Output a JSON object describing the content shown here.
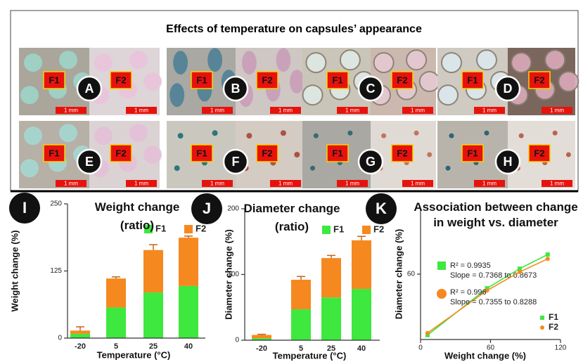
{
  "header": {
    "title": "Effects of temperature on capsules’ appearance"
  },
  "photo_panels": [
    {
      "letter": "A",
      "labels": [
        "F1",
        "F2"
      ],
      "scale_bars": [
        "1 mm",
        "1 mm"
      ]
    },
    {
      "letter": "B",
      "labels": [
        "F1",
        "F2"
      ],
      "scale_bars": [
        "1 mm",
        "1 mm"
      ]
    },
    {
      "letter": "C",
      "labels": [
        "F1",
        "F2"
      ],
      "scale_bars": [
        "1 mm",
        "1 mm"
      ]
    },
    {
      "letter": "D",
      "labels": [
        "F1",
        "F2"
      ],
      "scale_bars": [
        "1 mm",
        "1 mm"
      ]
    },
    {
      "letter": "E",
      "labels": [
        "F1",
        "F2"
      ],
      "scale_bars": [
        "1 mm",
        "1 mm"
      ]
    },
    {
      "letter": "F",
      "labels": [
        "F1",
        "F2"
      ],
      "scale_bars": [
        "1 mm",
        "1 mm"
      ]
    },
    {
      "letter": "G",
      "labels": [
        "F1",
        "F2"
      ],
      "scale_bars": [
        "1 mm",
        "1 mm"
      ]
    },
    {
      "letter": "H",
      "labels": [
        "F1",
        "F2"
      ],
      "scale_bars": [
        "1 mm",
        "1 mm"
      ]
    }
  ],
  "chart_data": [
    {
      "type": "bar",
      "stacked": true,
      "panel": "I",
      "title": "Weight change (ratio)",
      "x_label": "Temperature (°C)",
      "y_label": "Weight change (%)",
      "categories": [
        "-20",
        "5",
        "25",
        "40"
      ],
      "series": [
        {
          "name": "F1",
          "color": "#3ee83e",
          "values": [
            8,
            57,
            85,
            97
          ]
        },
        {
          "name": "F2",
          "color": "#f5891f",
          "values": [
            6,
            54,
            79,
            90
          ],
          "errors": [
            7,
            3,
            10,
            3
          ]
        }
      ],
      "ylim": [
        0,
        250
      ],
      "yticks": [
        0,
        125,
        250
      ]
    },
    {
      "type": "bar",
      "stacked": true,
      "panel": "J",
      "title": "Diameter change (ratio)",
      "x_label": "Temperature (°C)",
      "y_label": "Diameter change (%)",
      "categories": [
        "-20",
        "5",
        "25",
        "40"
      ],
      "series": [
        {
          "name": "F1",
          "color": "#3ee83e",
          "values": [
            3,
            47,
            65,
            78
          ]
        },
        {
          "name": "F2",
          "color": "#f5891f",
          "values": [
            5,
            45,
            60,
            74
          ],
          "errors": [
            1,
            5,
            4,
            6
          ]
        }
      ],
      "ylim": [
        0,
        200
      ],
      "yticks": [
        0,
        100,
        200
      ]
    },
    {
      "type": "line",
      "panel": "K",
      "title": "Association between change in weight vs. diameter",
      "x_label": "Weight change (%)",
      "y_label": "Diameter change (%)",
      "series": [
        {
          "name": "F1",
          "color": "#3ee83e",
          "marker": "square",
          "x": [
            6,
            57,
            85,
            109
          ],
          "values": [
            4,
            47,
            65,
            78
          ]
        },
        {
          "name": "F2",
          "color": "#f5891f",
          "marker": "circle",
          "x": [
            6,
            57,
            85,
            109
          ],
          "values": [
            6,
            45,
            62,
            74
          ]
        }
      ],
      "fits": [
        {
          "r2": "R² = 0.9935",
          "slope": "Slope = 0.7368 to 0.8673"
        },
        {
          "r2": "R² = 0.996",
          "slope": "Slope = 0.7355 to 0.8288"
        }
      ],
      "xlim": [
        0,
        120
      ],
      "xticks": [
        0,
        60,
        120
      ],
      "ylim": [
        0,
        120
      ],
      "yticks": [
        60
      ]
    }
  ]
}
